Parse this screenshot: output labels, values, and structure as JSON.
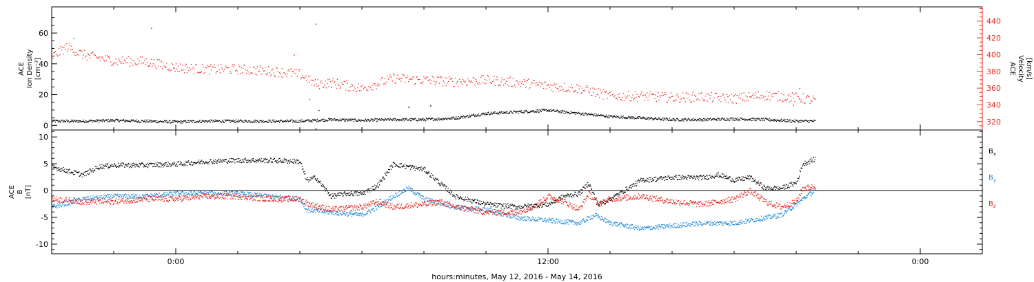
{
  "chart_data": [
    {
      "type": "scatter",
      "panel": "top",
      "time_range_hours": [
        -4,
        26
      ],
      "x_ticks": [
        {
          "hour": 0,
          "label": "0:00"
        },
        {
          "hour": 12,
          "label": "12:00"
        },
        {
          "hour": 24,
          "label": "0:00"
        }
      ],
      "left_axis": {
        "label_lines": [
          "ACE",
          "Ion Density",
          "[cm⁻³]"
        ],
        "ylim": [
          -3,
          77
        ],
        "ticks": [
          0,
          20,
          40,
          60
        ]
      },
      "right_axis": {
        "label_lines": [
          "ACE",
          "Velocity",
          "[km/s]"
        ],
        "ylim": [
          310,
          457
        ],
        "ticks": [
          320,
          340,
          360,
          380,
          400,
          420,
          440
        ],
        "color": "#e8241c"
      },
      "series": [
        {
          "axis": "left",
          "color": "#000000",
          "points": [
            [
              -4,
              3
            ],
            [
              -3,
              3
            ],
            [
              -2,
              3.5
            ],
            [
              -1,
              3
            ],
            [
              0,
              2.5
            ],
            [
              1,
              3
            ],
            [
              2,
              3
            ],
            [
              3,
              3
            ],
            [
              4,
              3
            ],
            [
              5,
              4
            ],
            [
              6,
              3.5
            ],
            [
              7,
              4
            ],
            [
              8,
              4
            ],
            [
              9,
              5
            ],
            [
              10,
              8
            ],
            [
              11,
              9
            ],
            [
              12,
              10
            ],
            [
              13,
              8
            ],
            [
              14,
              6
            ],
            [
              15,
              5
            ],
            [
              16,
              4
            ],
            [
              17,
              4
            ],
            [
              18,
              4.5
            ],
            [
              19,
              4
            ],
            [
              20,
              3
            ],
            [
              20.6,
              3
            ]
          ],
          "spikes": [
            [
              4.5,
              -2
            ],
            [
              4.6,
              10
            ],
            [
              7.5,
              12
            ],
            [
              8.2,
              13
            ]
          ]
        },
        {
          "axis": "right",
          "color": "#e8241c",
          "points": [
            [
              -4,
              398
            ],
            [
              -3.5,
              410
            ],
            [
              -3,
              400
            ],
            [
              -2,
              393
            ],
            [
              -1,
              392
            ],
            [
              0,
              385
            ],
            [
              1,
              383
            ],
            [
              2,
              383
            ],
            [
              3,
              381
            ],
            [
              4,
              377
            ],
            [
              4.5,
              365
            ],
            [
              5,
              367
            ],
            [
              6,
              360
            ],
            [
              7,
              372
            ],
            [
              8,
              370
            ],
            [
              9,
              368
            ],
            [
              10,
              370
            ],
            [
              11,
              367
            ],
            [
              12,
              363
            ],
            [
              13,
              360
            ],
            [
              14,
              351
            ],
            [
              15,
              351
            ],
            [
              16,
              349
            ],
            [
              17,
              350
            ],
            [
              18,
              348
            ],
            [
              19,
              352
            ],
            [
              20,
              349
            ],
            [
              20.6,
              346
            ]
          ],
          "spikes": [
            [
              -3.3,
              420
            ],
            [
              -0.8,
              432
            ],
            [
              3.8,
              400
            ],
            [
              4.5,
              437
            ],
            [
              4.3,
              347
            ],
            [
              19.9,
              340
            ],
            [
              20.1,
              360
            ]
          ]
        }
      ]
    },
    {
      "type": "scatter",
      "panel": "bottom",
      "time_range_hours": [
        -4,
        26
      ],
      "left_axis": {
        "label_lines": [
          "ACE",
          "B",
          "[nT]"
        ],
        "ylim": [
          -11.8,
          11.3
        ],
        "ticks": [
          -10,
          -5,
          0,
          5,
          10
        ]
      },
      "series": [
        {
          "name": "B",
          "subscript": "x",
          "color": "#000000",
          "points": [
            [
              -4,
              4.5
            ],
            [
              -3,
              3
            ],
            [
              -2.5,
              4.5
            ],
            [
              -2,
              4.8
            ],
            [
              -1,
              4.8
            ],
            [
              0,
              5
            ],
            [
              1,
              5.5
            ],
            [
              2,
              5.7
            ],
            [
              3,
              5.7
            ],
            [
              3.5,
              5.6
            ],
            [
              4,
              5.5
            ],
            [
              4.2,
              2
            ],
            [
              4.5,
              2.5
            ],
            [
              5,
              -1
            ],
            [
              5.5,
              -0.5
            ],
            [
              6,
              -0.5
            ],
            [
              6.5,
              1
            ],
            [
              7,
              5
            ],
            [
              7.5,
              4.5
            ],
            [
              8,
              4
            ],
            [
              9,
              -1
            ],
            [
              10,
              -2.5
            ],
            [
              11,
              -3
            ],
            [
              12,
              -2.5
            ],
            [
              12.5,
              -1
            ],
            [
              13,
              -0.5
            ],
            [
              13.3,
              1.5
            ],
            [
              13.6,
              -2.5
            ],
            [
              14,
              -1.5
            ],
            [
              15,
              2
            ],
            [
              16,
              2.5
            ],
            [
              17,
              2.5
            ],
            [
              17.5,
              3
            ],
            [
              18,
              2
            ],
            [
              18.5,
              2.5
            ],
            [
              19,
              0.5
            ],
            [
              19.5,
              0.5
            ],
            [
              20,
              1.5
            ],
            [
              20.2,
              5
            ],
            [
              20.6,
              6
            ]
          ]
        },
        {
          "name": "B",
          "subscript": "y",
          "color": "#1a87d6",
          "points": [
            [
              -4,
              -3
            ],
            [
              -3,
              -1.5
            ],
            [
              -2,
              -1
            ],
            [
              -1,
              -1
            ],
            [
              0,
              -0.5
            ],
            [
              1,
              -0.5
            ],
            [
              2,
              -0.5
            ],
            [
              3,
              -1
            ],
            [
              4,
              -1.5
            ],
            [
              4.2,
              -3.5
            ],
            [
              5,
              -4
            ],
            [
              6,
              -4.5
            ],
            [
              6.5,
              -3
            ],
            [
              7,
              -1
            ],
            [
              7.5,
              0.5
            ],
            [
              8,
              -1.5
            ],
            [
              9,
              -3
            ],
            [
              10,
              -3.5
            ],
            [
              11,
              -5
            ],
            [
              12,
              -5.5
            ],
            [
              13,
              -6
            ],
            [
              13.5,
              -4.5
            ],
            [
              14,
              -6
            ],
            [
              15,
              -7
            ],
            [
              16,
              -6.5
            ],
            [
              17,
              -6
            ],
            [
              18,
              -6
            ],
            [
              19,
              -5
            ],
            [
              19.5,
              -4.5
            ],
            [
              20,
              -2.5
            ],
            [
              20.3,
              -1
            ],
            [
              20.6,
              0
            ]
          ]
        },
        {
          "name": "B",
          "subscript": "z",
          "color": "#e8241c",
          "points": [
            [
              -4,
              -1.5
            ],
            [
              -3,
              -2
            ],
            [
              -2,
              -2
            ],
            [
              -1,
              -1.5
            ],
            [
              0,
              -1.5
            ],
            [
              1,
              -1
            ],
            [
              2,
              -1
            ],
            [
              3,
              -1.5
            ],
            [
              4,
              -1.5
            ],
            [
              4.3,
              -2.5
            ],
            [
              5,
              -3.5
            ],
            [
              6,
              -3
            ],
            [
              6.5,
              -2
            ],
            [
              7,
              -3
            ],
            [
              8,
              -2.5
            ],
            [
              8.5,
              -2
            ],
            [
              9,
              -3
            ],
            [
              10,
              -4
            ],
            [
              11,
              -4
            ],
            [
              11.5,
              -3
            ],
            [
              12,
              -1
            ],
            [
              12.5,
              -2
            ],
            [
              13,
              -3.5
            ],
            [
              13.3,
              -0.5
            ],
            [
              13.6,
              -2.5
            ],
            [
              14,
              -1.5
            ],
            [
              15,
              -1
            ],
            [
              16,
              -2
            ],
            [
              17,
              -2.5
            ],
            [
              18,
              -1.5
            ],
            [
              18.5,
              0
            ],
            [
              19,
              -2
            ],
            [
              19.5,
              -3
            ],
            [
              20,
              -2
            ],
            [
              20.2,
              0.5
            ],
            [
              20.6,
              0.8
            ]
          ]
        }
      ]
    }
  ],
  "xlabel": "hours:minutes, May 12, 2016 - May 14, 2016"
}
